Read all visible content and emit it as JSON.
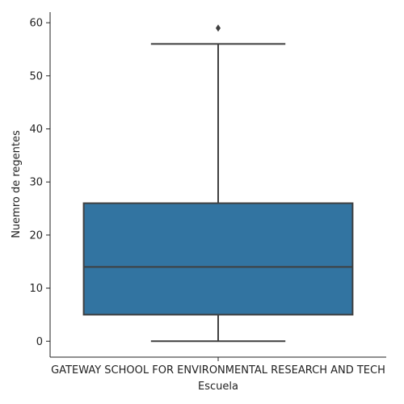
{
  "chart_data": {
    "type": "box",
    "categories": [
      "GATEWAY SCHOOL FOR ENVIRONMENTAL RESEARCH AND TECH"
    ],
    "boxes": [
      {
        "category": "GATEWAY SCHOOL FOR ENVIRONMENTAL RESEARCH AND TECH",
        "whisker_low": 0,
        "q1": 5,
        "median": 14,
        "q3": 26,
        "whisker_high": 56,
        "outliers": [
          59
        ]
      }
    ],
    "xlabel": "Escuela",
    "ylabel": "Nuemro de regentes",
    "ylim": [
      -3,
      62
    ],
    "yticks": [
      0,
      10,
      20,
      30,
      40,
      50,
      60
    ],
    "grid": false,
    "box_color": "#3274a1",
    "line_color": "#3f3f3f"
  }
}
